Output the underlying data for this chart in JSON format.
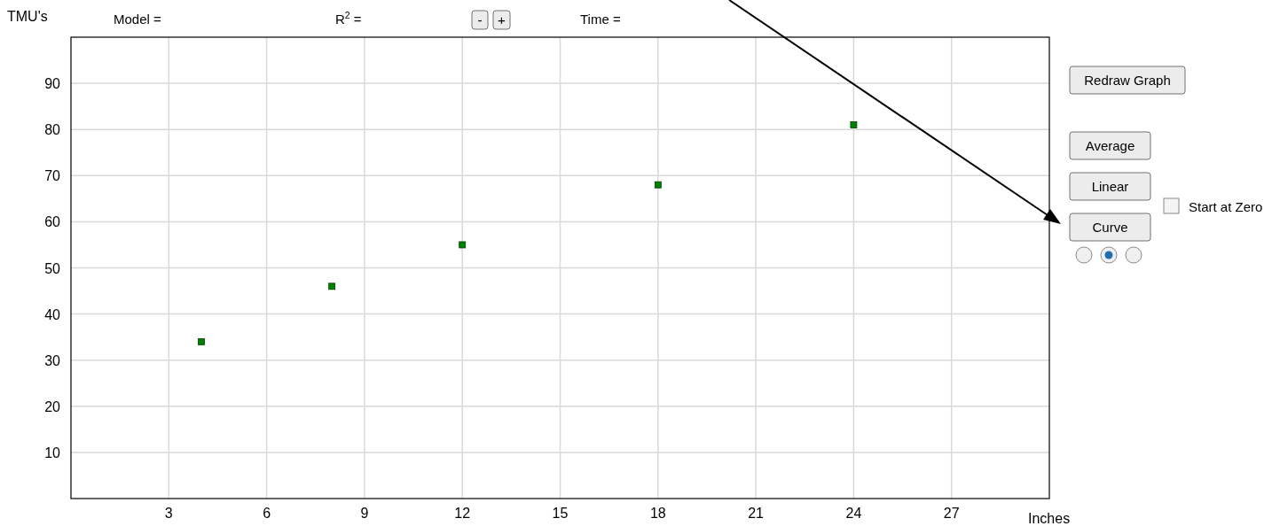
{
  "chart_data": {
    "type": "scatter",
    "xlabel": "Inches",
    "ylabel": "TMU's",
    "x": [
      4,
      8,
      12,
      18,
      24
    ],
    "series": [
      {
        "color": "#008000",
        "values": [
          34,
          46,
          55,
          68,
          81
        ]
      }
    ],
    "xlim": [
      0,
      30
    ],
    "xticks": [
      3,
      6,
      9,
      12,
      15,
      18,
      21,
      24,
      27
    ],
    "ylim": [
      0,
      100
    ],
    "yticks": [
      10,
      20,
      30,
      40,
      50,
      60,
      70,
      80,
      90
    ],
    "grid": true,
    "marker": "square",
    "annotations": [
      "Model =",
      "R$^{2}$ =",
      "-",
      "+",
      "Time =",
      "Redraw Graph",
      "Average",
      "Linear",
      "Curve",
      "Start at Zero"
    ]
  }
}
